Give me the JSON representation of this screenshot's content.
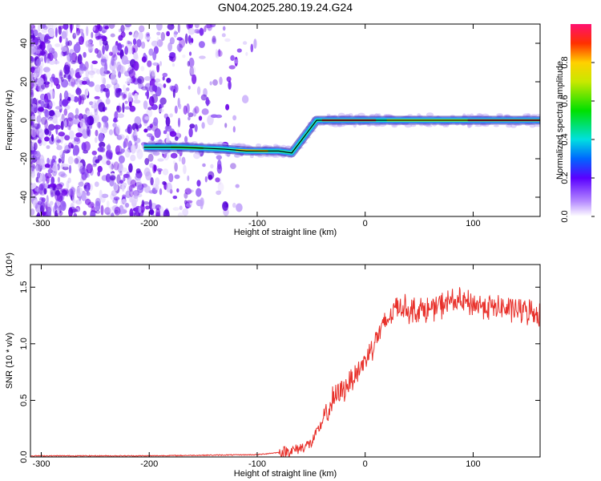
{
  "chart_data": [
    {
      "type": "heatmap",
      "title": "GN04.2025.280.19.24.G24",
      "xlabel": "Height of straight line (km)",
      "ylabel": "Frequency (Hz)",
      "xlim": [
        -310,
        162
      ],
      "ylim": [
        -50,
        50
      ],
      "x_ticks": [
        -300,
        -200,
        -100,
        0,
        100
      ],
      "y_ticks": [
        -40,
        -20,
        0,
        20,
        40
      ],
      "ridge": {
        "x": [
          -205,
          -170,
          -130,
          -110,
          -80,
          -68,
          -45,
          10,
          15,
          100,
          162
        ],
        "y": [
          -14,
          -14,
          -15,
          -16,
          -16,
          -17,
          0,
          0,
          0,
          0,
          0
        ]
      },
      "colorbar": {
        "label": "Normalized spectral amplitude",
        "range": [
          0,
          1
        ],
        "ticks": [
          0.0,
          0.2,
          0.4,
          0.6,
          0.8
        ]
      }
    },
    {
      "type": "line",
      "xlabel": "Height of straight line (km)",
      "ylabel": "SNR (10 * v/v)",
      "multiplier": "(x10⁴)",
      "xlim": [
        -310,
        162
      ],
      "ylim": [
        0,
        1.7
      ],
      "x_ticks": [
        -300,
        -200,
        -100,
        0,
        100
      ],
      "y_ticks": [
        0.0,
        0.5,
        1.0,
        1.5
      ],
      "series": [
        {
          "color": "#e8302a",
          "x": [
            -310,
            -250,
            -200,
            -150,
            -100,
            -80,
            -65,
            -50,
            -40,
            -30,
            -20,
            -10,
            0,
            10,
            20,
            30,
            40,
            60,
            80,
            100,
            120,
            140,
            162
          ],
          "y": [
            0.01,
            0.01,
            0.01,
            0.015,
            0.02,
            0.04,
            0.06,
            0.12,
            0.3,
            0.5,
            0.6,
            0.72,
            0.85,
            1.05,
            1.2,
            1.35,
            1.3,
            1.3,
            1.38,
            1.35,
            1.32,
            1.3,
            1.27
          ]
        }
      ]
    }
  ]
}
